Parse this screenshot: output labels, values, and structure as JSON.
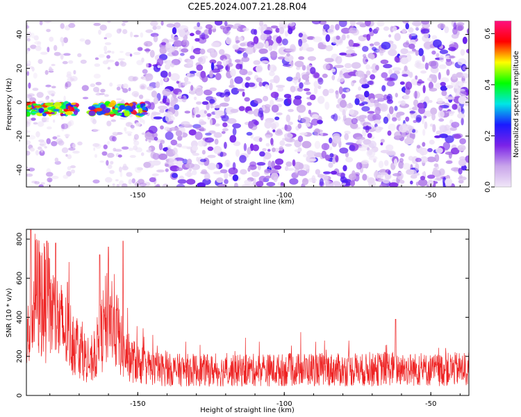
{
  "title": "C2E5.2024.007.21.28.R04",
  "chart_data": [
    {
      "type": "heatmap",
      "xlabel": "Height of straight line (km)",
      "ylabel": "Frequency (Hz)",
      "xlim": [
        -188,
        -37
      ],
      "ylim": [
        -50,
        48
      ],
      "xticks": [
        -150,
        -100,
        -50
      ],
      "yticks": [
        -40,
        -20,
        0,
        20,
        40
      ],
      "colorbar": {
        "label": "Normalized spectral amplitude",
        "range": [
          0.0,
          0.65
        ],
        "ticks": [
          0.0,
          0.2,
          0.4,
          0.6
        ],
        "colors": [
          "#f0e6f8",
          "#c9a5ea",
          "#7b22e8",
          "#1a1aff",
          "#00e6e6",
          "#00ff00",
          "#ffff00",
          "#ff0000",
          "#ff1080"
        ]
      },
      "features": [
        {
          "description": "strong signal band near 0 Hz",
          "x_range": [
            -188,
            -147
          ],
          "y": -4,
          "max_amplitude": 0.62
        },
        {
          "description": "noise field",
          "x_range": [
            -147,
            -37
          ],
          "y_range": [
            -50,
            48
          ],
          "typical_amplitude": 0.15
        }
      ],
      "grid": false
    },
    {
      "type": "line",
      "xlabel": "Height of straight line (km)",
      "ylabel": "SNR (10 * v/v)",
      "xlim": [
        -188,
        -37
      ],
      "ylim": [
        0,
        850
      ],
      "xticks": [
        -150,
        -100,
        -50
      ],
      "yticks": [
        0,
        200,
        400,
        600,
        800
      ],
      "series": [
        {
          "color": "#ee2222",
          "x": [
            -188,
            -185,
            -182,
            -178,
            -175,
            -170,
            -166,
            -163,
            -160,
            -158,
            -155,
            -152,
            -148,
            -145,
            -140,
            -130,
            -120,
            -110,
            -100,
            -90,
            -80,
            -70,
            -65,
            -60,
            -50,
            -40,
            -37
          ],
          "y": [
            250,
            520,
            480,
            400,
            330,
            250,
            150,
            280,
            420,
            380,
            220,
            180,
            150,
            140,
            130,
            130,
            125,
            130,
            130,
            135,
            130,
            130,
            140,
            135,
            130,
            135,
            130
          ]
        }
      ],
      "peaks": [
        {
          "x": -186.5,
          "y": 850
        },
        {
          "x": -181,
          "y": 790
        },
        {
          "x": -178,
          "y": 780
        },
        {
          "x": -174,
          "y": 580
        },
        {
          "x": -163,
          "y": 720
        },
        {
          "x": -160,
          "y": 760
        },
        {
          "x": -155,
          "y": 790
        },
        {
          "x": -62,
          "y": 390
        }
      ],
      "grid": false
    }
  ]
}
